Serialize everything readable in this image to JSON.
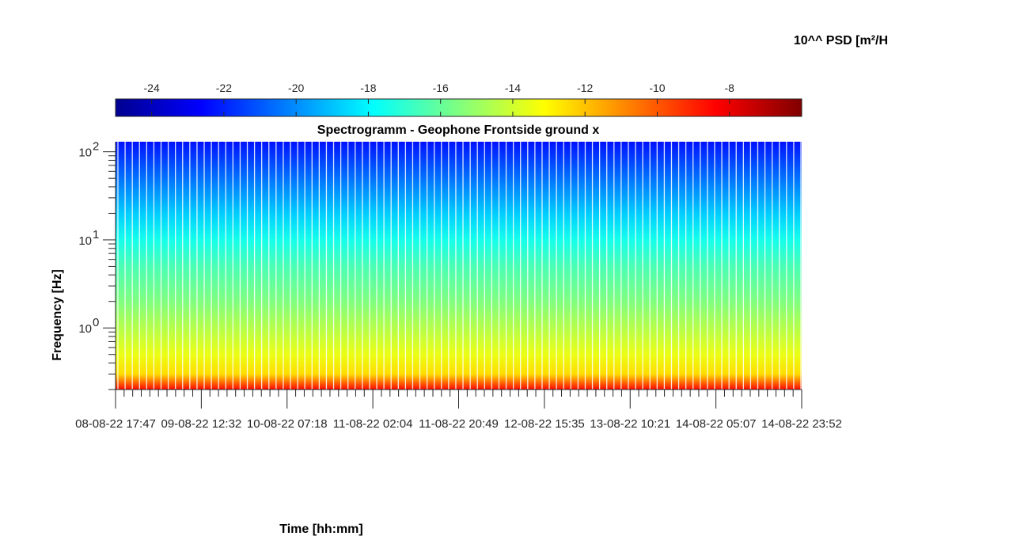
{
  "chart_data": {
    "type": "heatmap",
    "title": "Spectrogramm - Geophone Frontside ground x",
    "xlabel": "Time [hh:mm]",
    "ylabel": "Frequency [Hz]",
    "colorbar": {
      "label": "10^^ PSD [m²/H",
      "range": [
        -25,
        -6
      ],
      "ticks": [
        -24,
        -22,
        -20,
        -18,
        -16,
        -14,
        -12,
        -10,
        -8
      ],
      "colormap": "jet",
      "location": "top"
    },
    "x": {
      "scale": "time",
      "tick_labels": [
        "08-08-22 17:47",
        "09-08-22 12:32",
        "10-08-22 07:18",
        "11-08-22 02:04",
        "11-08-22 20:49",
        "12-08-22 15:35",
        "13-08-22 10:21",
        "14-08-22 05:07",
        "14-08-22 23:52"
      ]
    },
    "y": {
      "scale": "log",
      "range": [
        0.2,
        130
      ],
      "ticks": [
        1,
        10,
        100
      ],
      "tick_labels": [
        {
          "base": "10",
          "exp": "0"
        },
        {
          "base": "10",
          "exp": "1"
        },
        {
          "base": "10",
          "exp": "2"
        }
      ]
    },
    "psd_profile": {
      "frequency_hz": [
        0.2,
        0.3,
        0.5,
        1,
        2,
        5,
        10,
        20,
        50,
        100,
        130
      ],
      "log10_psd": [
        -8.5,
        -12.5,
        -13.5,
        -14.5,
        -15.5,
        -16.5,
        -17.5,
        -18.8,
        -20.5,
        -21.8,
        -22.3
      ]
    },
    "gap_count": 96
  }
}
